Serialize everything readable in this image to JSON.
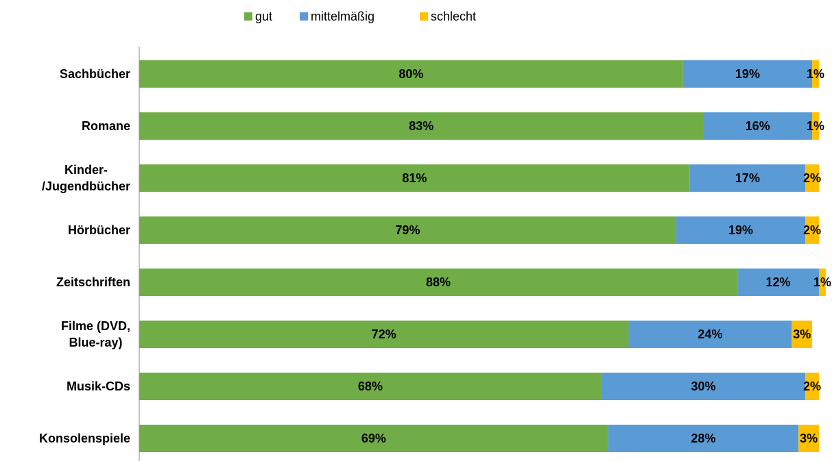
{
  "chart_data": {
    "type": "stacked_bar_horizontal",
    "categories": [
      "Sachbücher",
      "Romane",
      "Kinder-\n/Jugendbücher",
      "Hörbücher",
      "Zeitschriften",
      "Filme (DVD,\nBlue-ray)",
      "Musik-CDs",
      "Konsolenspiele"
    ],
    "series": [
      {
        "name": "gut",
        "color": "#70ad47",
        "values": [
          80,
          83,
          81,
          79,
          88,
          72,
          68,
          69
        ],
        "value_labels": [
          "80%",
          "83%",
          "81%",
          "79%",
          "88%",
          "72%",
          "68%",
          "69%"
        ]
      },
      {
        "name": "mittelmäßig",
        "color": "#5b9bd5",
        "values": [
          19,
          16,
          17,
          19,
          12,
          24,
          30,
          28
        ],
        "value_labels": [
          "19%",
          "16%",
          "17%",
          "19%",
          "12%",
          "24%",
          "30%",
          "28%"
        ]
      },
      {
        "name": "schlecht",
        "color": "#ffc000",
        "values": [
          1,
          1,
          2,
          2,
          1,
          3,
          2,
          3
        ],
        "value_labels": [
          "1%",
          "1%",
          "2%",
          "2%",
          "1%",
          "3%",
          "2%",
          "3%"
        ]
      }
    ],
    "xlim": [
      0,
      100
    ],
    "legend": "top"
  }
}
